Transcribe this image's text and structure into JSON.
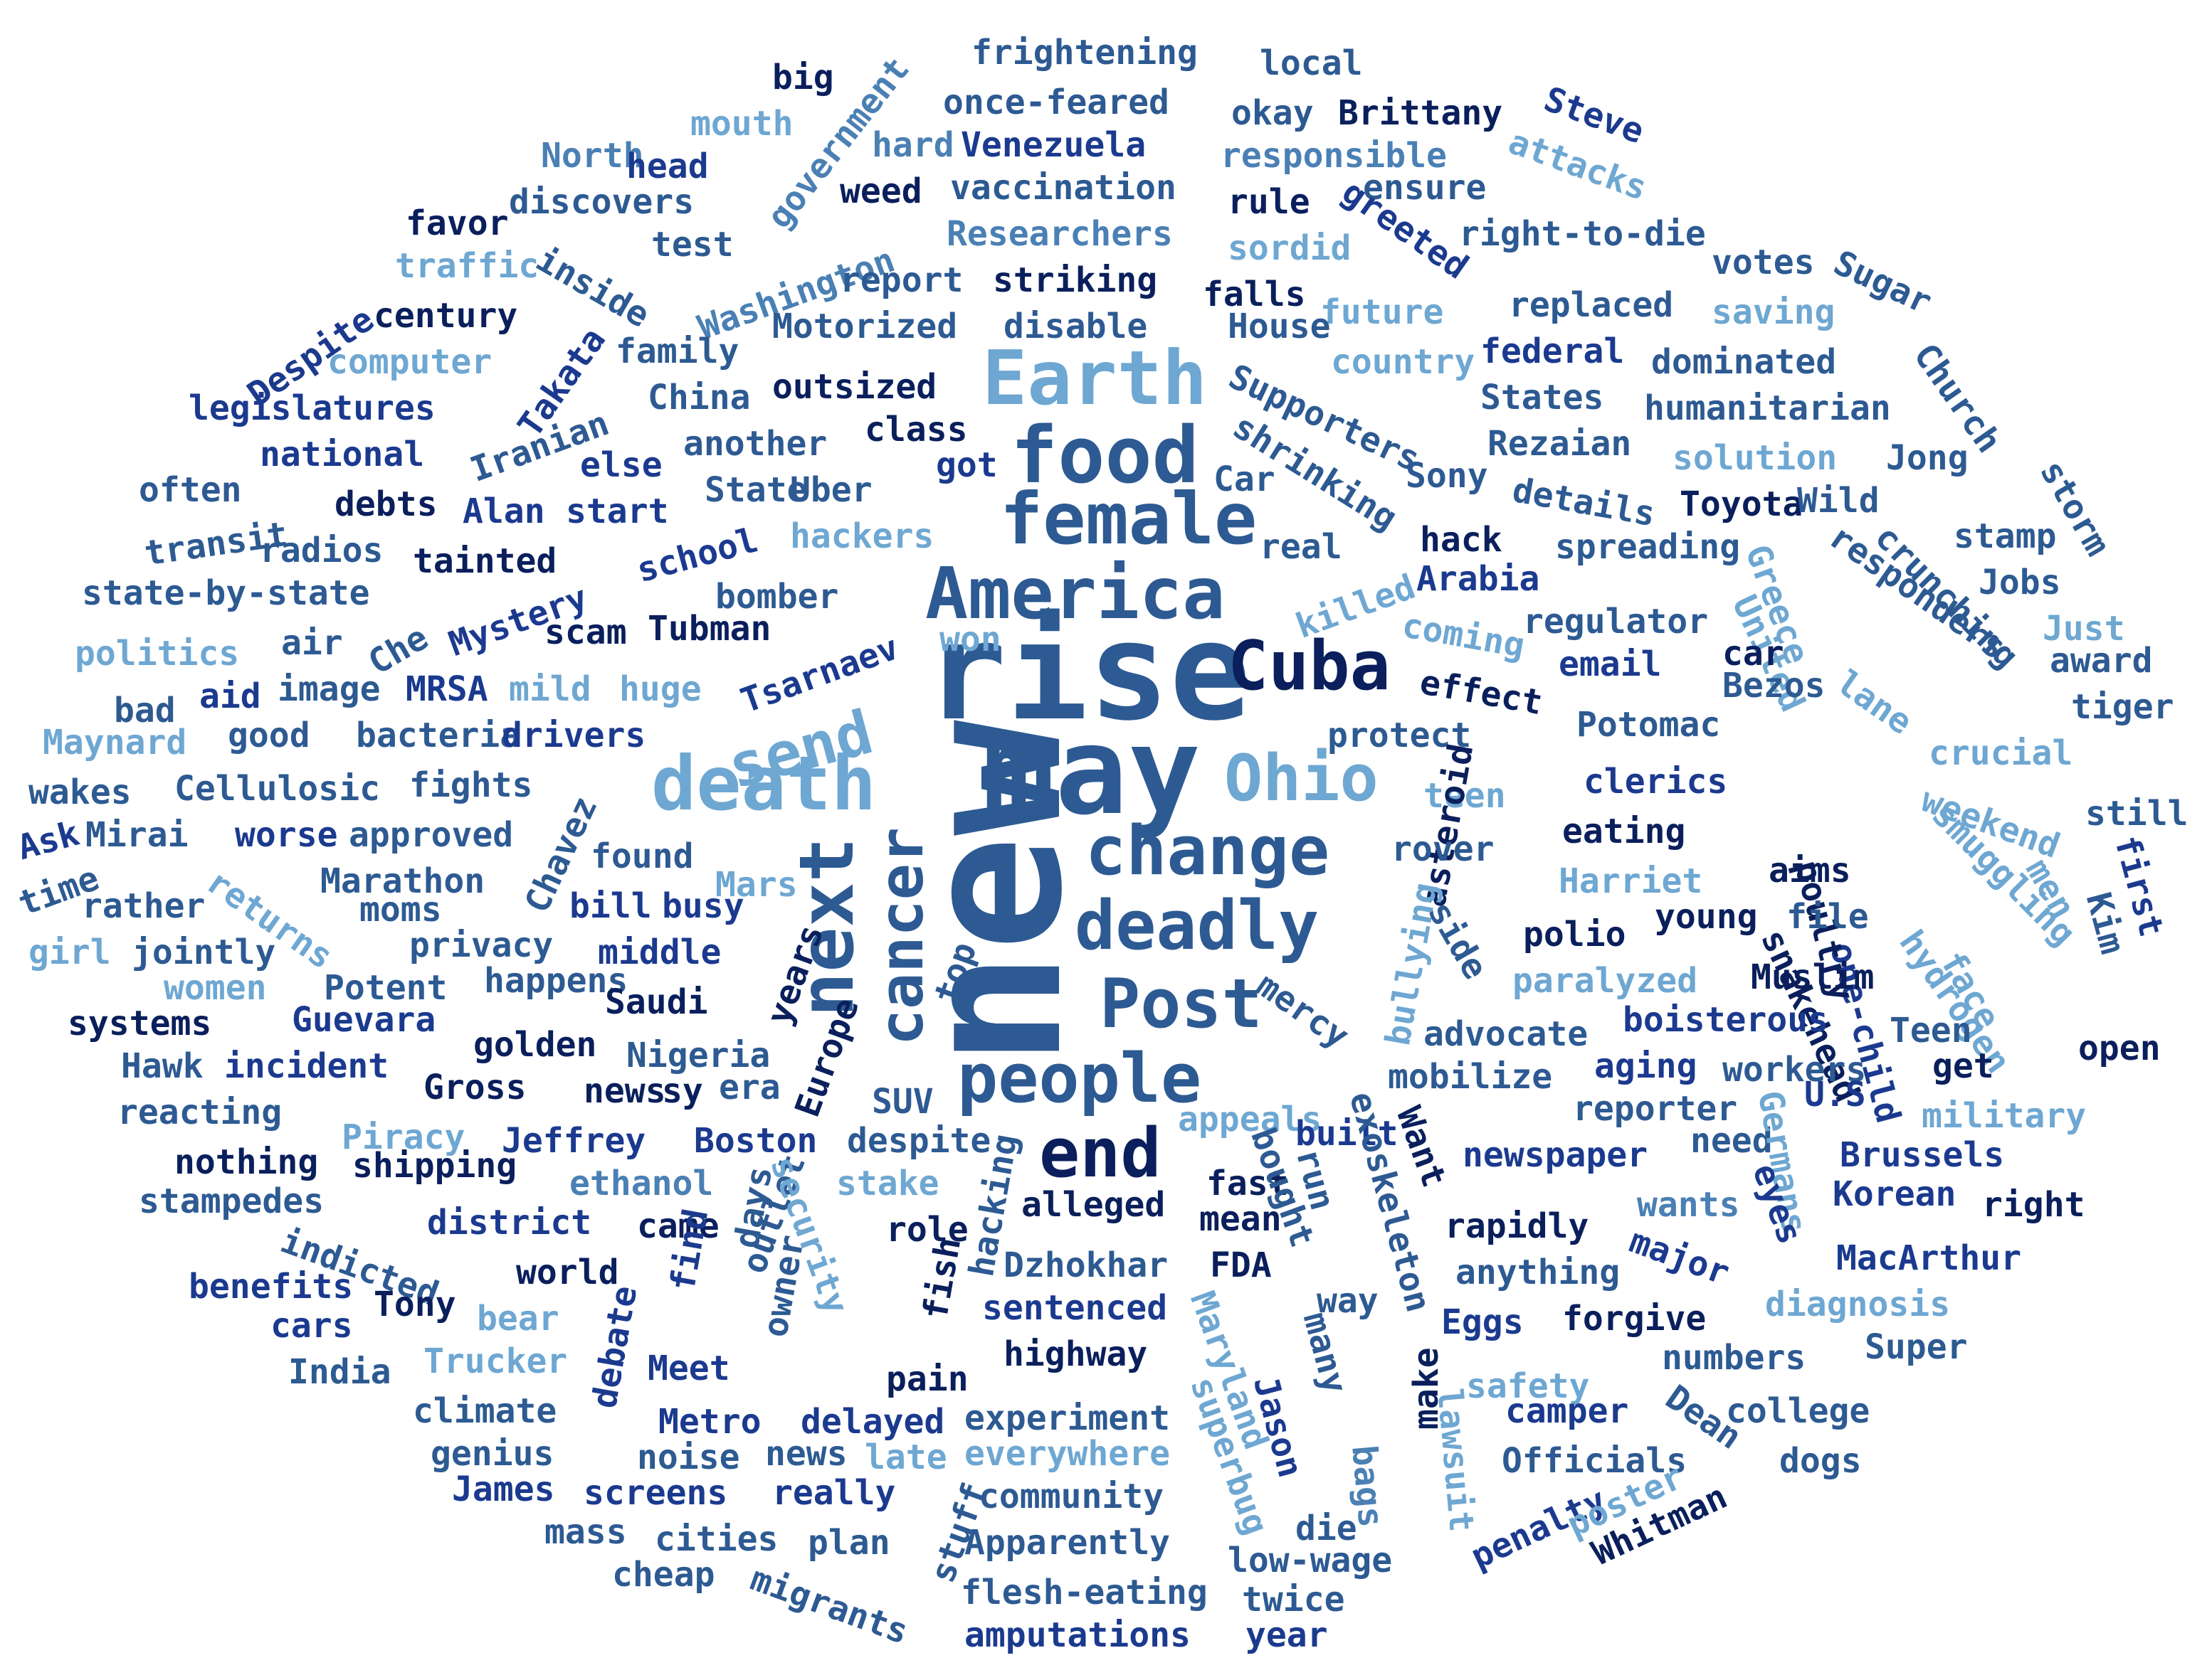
{
  "colors": {
    "c1": "#0a1f5c",
    "c2": "#1b3a8f",
    "c3": "#2d5a92",
    "c4": "#4a80b4",
    "c5": "#6ea7d2"
  },
  "words": [
    {
      "text": "new",
      "color": "c3"
    },
    {
      "text": "rise",
      "color": "c3"
    },
    {
      "text": "may",
      "color": "c3"
    },
    {
      "text": "Earth",
      "color": "c5"
    },
    {
      "text": "food",
      "color": "c3"
    },
    {
      "text": "female",
      "color": "c3"
    },
    {
      "text": "America",
      "color": "c3"
    },
    {
      "text": "Cuba",
      "color": "c1"
    },
    {
      "text": "send",
      "color": "c5"
    },
    {
      "text": "death",
      "color": "c5"
    },
    {
      "text": "Ohio",
      "color": "c5"
    },
    {
      "text": "change",
      "color": "c3"
    },
    {
      "text": "deadly",
      "color": "c3"
    },
    {
      "text": "next",
      "color": "c3"
    },
    {
      "text": "cancer",
      "color": "c3"
    },
    {
      "text": "Post",
      "color": "c3"
    },
    {
      "text": "people",
      "color": "c3"
    },
    {
      "text": "end",
      "color": "c1"
    },
    {
      "text": "frightening",
      "color": "c3"
    },
    {
      "text": "local",
      "color": "c3"
    },
    {
      "text": "big",
      "color": "c1"
    },
    {
      "text": "government",
      "color": "c4"
    },
    {
      "text": "once-feared",
      "color": "c3"
    },
    {
      "text": "okay",
      "color": "c3"
    },
    {
      "text": "Brittany",
      "color": "c1"
    },
    {
      "text": "Steve",
      "color": "c2"
    },
    {
      "text": "mouth",
      "color": "c5"
    },
    {
      "text": "hard",
      "color": "c4"
    },
    {
      "text": "Venezuela",
      "color": "c2"
    },
    {
      "text": "responsible",
      "color": "c4"
    },
    {
      "text": "attacks",
      "color": "c5"
    },
    {
      "text": "North",
      "color": "c4"
    },
    {
      "text": "head",
      "color": "c2"
    },
    {
      "text": "discovers",
      "color": "c3"
    },
    {
      "text": "weed",
      "color": "c1"
    },
    {
      "text": "vaccination",
      "color": "c3"
    },
    {
      "text": "rule",
      "color": "c1"
    },
    {
      "text": "ensure",
      "color": "c3"
    },
    {
      "text": "favor",
      "color": "c1"
    },
    {
      "text": "Washington",
      "color": "c4"
    },
    {
      "text": "Researchers",
      "color": "c4"
    },
    {
      "text": "greeted",
      "color": "c2"
    },
    {
      "text": "right-to-die",
      "color": "c3"
    },
    {
      "text": "Despite",
      "color": "c2"
    },
    {
      "text": "traffic",
      "color": "c5"
    },
    {
      "text": "inside",
      "color": "c3"
    },
    {
      "text": "test",
      "color": "c3"
    },
    {
      "text": "report",
      "color": "c3"
    },
    {
      "text": "striking",
      "color": "c1"
    },
    {
      "text": "sordid",
      "color": "c5"
    },
    {
      "text": "votes",
      "color": "c3"
    },
    {
      "text": "Sugar",
      "color": "c3"
    },
    {
      "text": "century",
      "color": "c1"
    },
    {
      "text": "falls",
      "color": "c1"
    },
    {
      "text": "future",
      "color": "c5"
    },
    {
      "text": "replaced",
      "color": "c3"
    },
    {
      "text": "saving",
      "color": "c5"
    },
    {
      "text": "Takata",
      "color": "c2"
    },
    {
      "text": "computer",
      "color": "c5"
    },
    {
      "text": "family",
      "color": "c3"
    },
    {
      "text": "Motorized",
      "color": "c3"
    },
    {
      "text": "disable",
      "color": "c3"
    },
    {
      "text": "House",
      "color": "c3"
    },
    {
      "text": "federal",
      "color": "c2"
    },
    {
      "text": "country",
      "color": "c5"
    },
    {
      "text": "dominated",
      "color": "c3"
    },
    {
      "text": "Church",
      "color": "c3"
    },
    {
      "text": "legislatures",
      "color": "c2"
    },
    {
      "text": "Iranian",
      "color": "c3"
    },
    {
      "text": "China",
      "color": "c3"
    },
    {
      "text": "outsized",
      "color": "c1"
    },
    {
      "text": "Supporters",
      "color": "c3"
    },
    {
      "text": "States",
      "color": "c3"
    },
    {
      "text": "humanitarian",
      "color": "c3"
    },
    {
      "text": "national",
      "color": "c2"
    },
    {
      "text": "another",
      "color": "c3"
    },
    {
      "text": "class",
      "color": "c1"
    },
    {
      "text": "shrinking",
      "color": "c3"
    },
    {
      "text": "Rezaian",
      "color": "c3"
    },
    {
      "text": "solution",
      "color": "c5"
    },
    {
      "text": "Jong",
      "color": "c3"
    },
    {
      "text": "often",
      "color": "c3"
    },
    {
      "text": "else",
      "color": "c2"
    },
    {
      "text": "got",
      "color": "c2"
    },
    {
      "text": "Car",
      "color": "c3"
    },
    {
      "text": "Sony",
      "color": "c3"
    },
    {
      "text": "details",
      "color": "c3"
    },
    {
      "text": "storm",
      "color": "c3"
    },
    {
      "text": "debts",
      "color": "c1"
    },
    {
      "text": "Alan",
      "color": "c2"
    },
    {
      "text": "start",
      "color": "c2"
    },
    {
      "text": "State",
      "color": "c3"
    },
    {
      "text": "Uber",
      "color": "c3"
    },
    {
      "text": "Toyota",
      "color": "c1"
    },
    {
      "text": "Wild",
      "color": "c3"
    },
    {
      "text": "transit",
      "color": "c3"
    },
    {
      "text": "radios",
      "color": "c3"
    },
    {
      "text": "tainted",
      "color": "c1"
    },
    {
      "text": "school",
      "color": "c2"
    },
    {
      "text": "hackers",
      "color": "c5"
    },
    {
      "text": "real",
      "color": "c3"
    },
    {
      "text": "hack",
      "color": "c1"
    },
    {
      "text": "spreading",
      "color": "c3"
    },
    {
      "text": "Greece",
      "color": "c5"
    },
    {
      "text": "responders",
      "color": "c3"
    },
    {
      "text": "crunching",
      "color": "c3"
    },
    {
      "text": "stamp",
      "color": "c3"
    },
    {
      "text": "state-by-state",
      "color": "c3"
    },
    {
      "text": "Mystery",
      "color": "c2"
    },
    {
      "text": "bomber",
      "color": "c3"
    },
    {
      "text": "Arabia",
      "color": "c2"
    },
    {
      "text": "Jobs",
      "color": "c3"
    },
    {
      "text": "Che",
      "color": "c3"
    },
    {
      "text": "scam",
      "color": "c1"
    },
    {
      "text": "Tubman",
      "color": "c1"
    },
    {
      "text": "killed",
      "color": "c5"
    },
    {
      "text": "coming",
      "color": "c5"
    },
    {
      "text": "regulator",
      "color": "c3"
    },
    {
      "text": "United",
      "color": "c5"
    },
    {
      "text": "Just",
      "color": "c5"
    },
    {
      "text": "politics",
      "color": "c5"
    },
    {
      "text": "air",
      "color": "c3"
    },
    {
      "text": "Tsarnaev",
      "color": "c2"
    },
    {
      "text": "won",
      "color": "c5"
    },
    {
      "text": "car",
      "color": "c1"
    },
    {
      "text": "award",
      "color": "c3"
    },
    {
      "text": "bad",
      "color": "c3"
    },
    {
      "text": "aid",
      "color": "c2"
    },
    {
      "text": "image",
      "color": "c3"
    },
    {
      "text": "MRSA",
      "color": "c2"
    },
    {
      "text": "mild",
      "color": "c5"
    },
    {
      "text": "huge",
      "color": "c5"
    },
    {
      "text": "effect",
      "color": "c1"
    },
    {
      "text": "email",
      "color": "c2"
    },
    {
      "text": "Bezos",
      "color": "c3"
    },
    {
      "text": "lane",
      "color": "c5"
    },
    {
      "text": "tiger",
      "color": "c3"
    },
    {
      "text": "Maynard",
      "color": "c5"
    },
    {
      "text": "good",
      "color": "c3"
    },
    {
      "text": "bacteria",
      "color": "c3"
    },
    {
      "text": "drivers",
      "color": "c2"
    },
    {
      "text": "protect",
      "color": "c3"
    },
    {
      "text": "Potomac",
      "color": "c3"
    },
    {
      "text": "crucial",
      "color": "c5"
    },
    {
      "text": "wakes",
      "color": "c3"
    },
    {
      "text": "Cellulosic",
      "color": "c3"
    },
    {
      "text": "fights",
      "color": "c3"
    },
    {
      "text": "Chavez",
      "color": "c3"
    },
    {
      "text": "teen",
      "color": "c5"
    },
    {
      "text": "asteroid",
      "color": "c1"
    },
    {
      "text": "clerics",
      "color": "c2"
    },
    {
      "text": "snakehead",
      "color": "c1"
    },
    {
      "text": "one-child",
      "color": "c2"
    },
    {
      "text": "weekend",
      "color": "c5"
    },
    {
      "text": "still",
      "color": "c3"
    },
    {
      "text": "Ask",
      "color": "c2"
    },
    {
      "text": "Mirai",
      "color": "c3"
    },
    {
      "text": "worse",
      "color": "c2"
    },
    {
      "text": "approved",
      "color": "c3"
    },
    {
      "text": "found",
      "color": "c3"
    },
    {
      "text": "eating",
      "color": "c1"
    },
    {
      "text": "poultry",
      "color": "c1"
    },
    {
      "text": "time",
      "color": "c3"
    },
    {
      "text": "Marathon",
      "color": "c3"
    },
    {
      "text": "Mars",
      "color": "c5"
    },
    {
      "text": "rover",
      "color": "c3"
    },
    {
      "text": "Harriet",
      "color": "c5"
    },
    {
      "text": "aims",
      "color": "c1"
    },
    {
      "text": "smuggling",
      "color": "c5"
    },
    {
      "text": "men",
      "color": "c5"
    },
    {
      "text": "first",
      "color": "c2"
    },
    {
      "text": "returns",
      "color": "c5"
    },
    {
      "text": "rather",
      "color": "c3"
    },
    {
      "text": "moms",
      "color": "c3"
    },
    {
      "text": "bill",
      "color": "c2"
    },
    {
      "text": "busy",
      "color": "c2"
    },
    {
      "text": "bullying",
      "color": "c5"
    },
    {
      "text": "young",
      "color": "c1"
    },
    {
      "text": "file",
      "color": "c3"
    },
    {
      "text": "Kim",
      "color": "c3"
    },
    {
      "text": "girl",
      "color": "c5"
    },
    {
      "text": "jointly",
      "color": "c3"
    },
    {
      "text": "privacy",
      "color": "c3"
    },
    {
      "text": "middle",
      "color": "c2"
    },
    {
      "text": "years",
      "color": "c1"
    },
    {
      "text": "top",
      "color": "c3"
    },
    {
      "text": "side",
      "color": "c3"
    },
    {
      "text": "polio",
      "color": "c1"
    },
    {
      "text": "hydrogen",
      "color": "c5"
    },
    {
      "text": "face",
      "color": "c5"
    },
    {
      "text": "women",
      "color": "c5"
    },
    {
      "text": "Potent",
      "color": "c3"
    },
    {
      "text": "happens",
      "color": "c3"
    },
    {
      "text": "paralyzed",
      "color": "c5"
    },
    {
      "text": "Muslim",
      "color": "c1"
    },
    {
      "text": "systems",
      "color": "c1"
    },
    {
      "text": "Guevara",
      "color": "c2"
    },
    {
      "text": "Saudi",
      "color": "c1"
    },
    {
      "text": "Europe",
      "color": "c1"
    },
    {
      "text": "mercy",
      "color": "c3"
    },
    {
      "text": "advocate",
      "color": "c3"
    },
    {
      "text": "boisterous",
      "color": "c2"
    },
    {
      "text": "Teen",
      "color": "c3"
    },
    {
      "text": "open",
      "color": "c1"
    },
    {
      "text": "Hawk",
      "color": "c3"
    },
    {
      "text": "incident",
      "color": "c2"
    },
    {
      "text": "golden",
      "color": "c1"
    },
    {
      "text": "Nigeria",
      "color": "c3"
    },
    {
      "text": "mobilize",
      "color": "c3"
    },
    {
      "text": "aging",
      "color": "c2"
    },
    {
      "text": "workers",
      "color": "c3"
    },
    {
      "text": "get",
      "color": "c1"
    },
    {
      "text": "reacting",
      "color": "c3"
    },
    {
      "text": "Gross",
      "color": "c1"
    },
    {
      "text": "news",
      "color": "c1"
    },
    {
      "text": "sy",
      "color": "c1"
    },
    {
      "text": "era",
      "color": "c3"
    },
    {
      "text": "SUV",
      "color": "c3"
    },
    {
      "text": "appeals",
      "color": "c5"
    },
    {
      "text": "built",
      "color": "c2"
    },
    {
      "text": "reporter",
      "color": "c3"
    },
    {
      "text": "U.S",
      "color": "c2"
    },
    {
      "text": "military",
      "color": "c5"
    },
    {
      "text": "Piracy",
      "color": "c5"
    },
    {
      "text": "Jeffrey",
      "color": "c2"
    },
    {
      "text": "Boston",
      "color": "c2"
    },
    {
      "text": "despite",
      "color": "c3"
    },
    {
      "text": "Want",
      "color": "c1"
    },
    {
      "text": "exoskeleton",
      "color": "c3"
    },
    {
      "text": "newspaper",
      "color": "c2"
    },
    {
      "text": "need",
      "color": "c3"
    },
    {
      "text": "Germans",
      "color": "c5"
    },
    {
      "text": "Brussels",
      "color": "c2"
    },
    {
      "text": "nothing",
      "color": "c1"
    },
    {
      "text": "shipping",
      "color": "c1"
    },
    {
      "text": "ethanol",
      "color": "c4"
    },
    {
      "text": "outlet",
      "color": "c3"
    },
    {
      "text": "stake",
      "color": "c5"
    },
    {
      "text": "fast",
      "color": "c1"
    },
    {
      "text": "bought",
      "color": "c3"
    },
    {
      "text": "run",
      "color": "c3"
    },
    {
      "text": "eyes",
      "color": "c2"
    },
    {
      "text": "Korean",
      "color": "c2"
    },
    {
      "text": "stampedes",
      "color": "c3"
    },
    {
      "text": "security",
      "color": "c5"
    },
    {
      "text": "hacking",
      "color": "c3"
    },
    {
      "text": "alleged",
      "color": "c1"
    },
    {
      "text": "mean",
      "color": "c1"
    },
    {
      "text": "wants",
      "color": "c4"
    },
    {
      "text": "right",
      "color": "c1"
    },
    {
      "text": "district",
      "color": "c2"
    },
    {
      "text": "came",
      "color": "c1"
    },
    {
      "text": "role",
      "color": "c1"
    },
    {
      "text": "rapidly",
      "color": "c1"
    },
    {
      "text": "major",
      "color": "c2"
    },
    {
      "text": "MacArthur",
      "color": "c2"
    },
    {
      "text": "indicted",
      "color": "c3"
    },
    {
      "text": "days",
      "color": "c3"
    },
    {
      "text": "fish",
      "color": "c1"
    },
    {
      "text": "Dzhokhar",
      "color": "c3"
    },
    {
      "text": "FDA",
      "color": "c1"
    },
    {
      "text": "many",
      "color": "c3"
    },
    {
      "text": "anything",
      "color": "c3"
    },
    {
      "text": "benefits",
      "color": "c2"
    },
    {
      "text": "world",
      "color": "c1"
    },
    {
      "text": "find",
      "color": "c2"
    },
    {
      "text": "owner",
      "color": "c3"
    },
    {
      "text": "way",
      "color": "c3"
    },
    {
      "text": "diagnosis",
      "color": "c5"
    },
    {
      "text": "cars",
      "color": "c2"
    },
    {
      "text": "Tony",
      "color": "c1"
    },
    {
      "text": "bear",
      "color": "c5"
    },
    {
      "text": "sentenced",
      "color": "c2"
    },
    {
      "text": "Maryland",
      "color": "c5"
    },
    {
      "text": "Eggs",
      "color": "c2"
    },
    {
      "text": "forgive",
      "color": "c1"
    },
    {
      "text": "Super",
      "color": "c3"
    },
    {
      "text": "Trucker",
      "color": "c5"
    },
    {
      "text": "debate",
      "color": "c2"
    },
    {
      "text": "highway",
      "color": "c1"
    },
    {
      "text": "lawsuit",
      "color": "c5"
    },
    {
      "text": "numbers",
      "color": "c3"
    },
    {
      "text": "India",
      "color": "c3"
    },
    {
      "text": "Meet",
      "color": "c2"
    },
    {
      "text": "pain",
      "color": "c1"
    },
    {
      "text": "superbug",
      "color": "c5"
    },
    {
      "text": "Jason",
      "color": "c2"
    },
    {
      "text": "safety",
      "color": "c5"
    },
    {
      "text": "Dean",
      "color": "c3"
    },
    {
      "text": "climate",
      "color": "c3"
    },
    {
      "text": "Metro",
      "color": "c2"
    },
    {
      "text": "delayed",
      "color": "c2"
    },
    {
      "text": "experiment",
      "color": "c3"
    },
    {
      "text": "make",
      "color": "c1"
    },
    {
      "text": "camper",
      "color": "c2"
    },
    {
      "text": "college",
      "color": "c3"
    },
    {
      "text": "genius",
      "color": "c3"
    },
    {
      "text": "noise",
      "color": "c3"
    },
    {
      "text": "news",
      "color": "c3"
    },
    {
      "text": "late",
      "color": "c5"
    },
    {
      "text": "everywhere",
      "color": "c5"
    },
    {
      "text": "bags",
      "color": "c4"
    },
    {
      "text": "Officials",
      "color": "c3"
    },
    {
      "text": "dogs",
      "color": "c3"
    },
    {
      "text": "James",
      "color": "c2"
    },
    {
      "text": "screens",
      "color": "c2"
    },
    {
      "text": "really",
      "color": "c2"
    },
    {
      "text": "community",
      "color": "c3"
    },
    {
      "text": "penalty",
      "color": "c2"
    },
    {
      "text": "poster",
      "color": "c5"
    },
    {
      "text": "mass",
      "color": "c3"
    },
    {
      "text": "cities",
      "color": "c3"
    },
    {
      "text": "plan",
      "color": "c3"
    },
    {
      "text": "stuff",
      "color": "c3"
    },
    {
      "text": "Apparently",
      "color": "c3"
    },
    {
      "text": "die",
      "color": "c3"
    },
    {
      "text": "Whitman",
      "color": "c1"
    },
    {
      "text": "cheap",
      "color": "c3"
    },
    {
      "text": "migrants",
      "color": "c3"
    },
    {
      "text": "flesh-eating",
      "color": "c3"
    },
    {
      "text": "low-wage",
      "color": "c3"
    },
    {
      "text": "twice",
      "color": "c3"
    },
    {
      "text": "amputations",
      "color": "c2"
    },
    {
      "text": "year",
      "color": "c2"
    }
  ]
}
